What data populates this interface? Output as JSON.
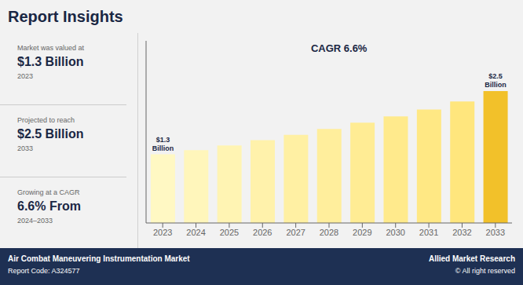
{
  "chart_data": {
    "type": "bar",
    "title": "Report Insights",
    "categories": [
      "2023",
      "2024",
      "2025",
      "2026",
      "2027",
      "2028",
      "2029",
      "2030",
      "2031",
      "2032",
      "2033"
    ],
    "values": [
      1.3,
      1.38,
      1.47,
      1.57,
      1.67,
      1.78,
      1.9,
      2.02,
      2.15,
      2.3,
      2.5
    ],
    "colors": [
      "#fff8c3",
      "#fff6bb",
      "#fff4b3",
      "#fff2ab",
      "#fff0a3",
      "#ffee9c",
      "#ffec94",
      "#ffea8c",
      "#ffe884",
      "#ffe67d",
      "#F2C12A"
    ],
    "value_labels": [
      "$1.3\nBillion",
      null,
      null,
      null,
      null,
      null,
      null,
      null,
      null,
      null,
      "$2.5\nBillion"
    ],
    "ylim": [
      0,
      3.45
    ],
    "yticks": [],
    "tick_labels": "x",
    "grid": false,
    "annotations": [
      "CAGR 6.6%"
    ],
    "insights": [
      {
        "label": "Market was valued at",
        "value": "$1.3 Billion",
        "year": "2023"
      },
      {
        "label": "Projected to reach",
        "value": "$2.5 Billion",
        "year": "2033"
      },
      {
        "label": "Growing at a CAGR",
        "value": "6.6% From",
        "year": "2024–2033"
      }
    ],
    "footer": {
      "left_bold": "Air Combat Maneuvering Instrumentation Market",
      "left_normal": "Report Code: A324577",
      "right_bold": "Allied Market Research",
      "right_normal": "© All right reserved"
    }
  }
}
